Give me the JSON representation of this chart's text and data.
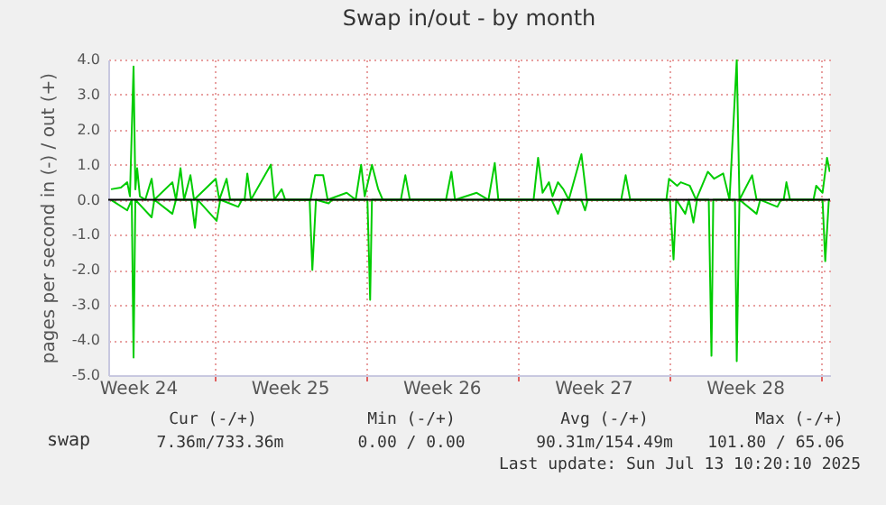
{
  "chart_data": {
    "type": "line",
    "title": "Swap in/out - by month",
    "ylabel": "pages per second in (-) / out (+)",
    "xlim": [
      "2025-06-10T03:00",
      "2025-07-13T10:20"
    ],
    "xticks": [
      {
        "value": "2025-06-11T12:00",
        "label": "Week 24"
      },
      {
        "value": "2025-06-15T00:00",
        "label": null
      },
      {
        "value": "2025-06-18T12:00",
        "label": "Week 25"
      },
      {
        "value": "2025-06-22T00:00",
        "label": null
      },
      {
        "value": "2025-06-25T12:00",
        "label": "Week 26"
      },
      {
        "value": "2025-06-29T00:00",
        "label": null
      },
      {
        "value": "2025-07-02T12:00",
        "label": "Week 27"
      },
      {
        "value": "2025-07-06T00:00",
        "label": null
      },
      {
        "value": "2025-07-09T12:00",
        "label": "Week 28"
      },
      {
        "value": "2025-07-13T00:00",
        "label": null
      }
    ],
    "ylim": [
      -5,
      4
    ],
    "yticks": [
      {
        "value": -5,
        "label": "-5.0"
      },
      {
        "value": -4,
        "label": "-4.0"
      },
      {
        "value": -3,
        "label": "-3.0"
      },
      {
        "value": -2,
        "label": "-2.0"
      },
      {
        "value": -1,
        "label": "-1.0"
      },
      {
        "value": 0,
        "label": "0.0"
      },
      {
        "value": 1,
        "label": "1.0"
      },
      {
        "value": 2,
        "label": "2.0"
      },
      {
        "value": 3,
        "label": "3.0"
      },
      {
        "value": 4,
        "label": "4.0"
      }
    ],
    "grid": true,
    "legend": "bottom left",
    "ref_lines": [
      {
        "axis": "y",
        "value": 0,
        "color": "#000000"
      }
    ],
    "series": [
      {
        "name": "swap",
        "color": "#00cc00",
        "x": [
          "2025-06-10T06:00",
          "2025-06-10T17:00",
          "2025-06-11T00:00",
          "2025-06-11T03:00",
          "2025-06-11T07:00",
          "2025-06-11T09:00",
          "2025-06-11T11:00",
          "2025-06-11T14:00",
          "2025-06-11T20:00",
          "2025-06-12T03:00",
          "2025-06-12T06:00",
          "2025-06-13T02:00",
          "2025-06-13T06:00",
          "2025-06-13T11:00",
          "2025-06-13T15:00",
          "2025-06-13T22:00",
          "2025-06-14T02:00",
          "2025-06-15T02:00",
          "2025-06-15T06:00",
          "2025-06-15T14:00",
          "2025-06-15T18:00",
          "2025-06-16T10:00",
          "2025-06-16T13:00",
          "2025-06-16T17:00",
          "2025-06-17T15:00",
          "2025-06-17T19:00",
          "2025-06-18T03:00",
          "2025-06-18T07:00",
          "2025-06-19T11:00",
          "2025-06-19T16:00",
          "2025-06-20T01:00",
          "2025-06-20T06:00",
          "2025-06-21T03:00",
          "2025-06-21T13:00",
          "2025-06-21T19:00",
          "2025-06-21T23:00",
          "2025-06-22T07:00",
          "2025-06-22T14:00",
          "2025-06-22T19:00",
          "2025-06-23T15:00",
          "2025-06-23T20:00",
          "2025-06-24T01:00",
          "2025-06-25T17:00",
          "2025-06-25T23:00",
          "2025-06-26T03:00",
          "2025-06-27T03:00",
          "2025-06-27T16:00",
          "2025-06-27T23:00",
          "2025-06-28T03:00",
          "2025-06-29T18:00",
          "2025-06-29T23:00",
          "2025-06-30T04:00",
          "2025-06-30T11:00",
          "2025-06-30T15:00",
          "2025-06-30T21:00",
          "2025-07-01T03:00",
          "2025-07-01T09:00",
          "2025-07-01T23:00",
          "2025-07-02T05:00",
          "2025-07-03T19:00",
          "2025-07-04T00:00",
          "2025-07-04T05:00",
          "2025-07-05T21:00",
          "2025-07-06T00:00",
          "2025-07-06T09:00",
          "2025-07-06T13:00",
          "2025-07-06T23:00",
          "2025-07-07T06:00",
          "2025-07-07T19:00",
          "2025-07-08T02:00",
          "2025-07-08T12:00",
          "2025-07-08T19:00",
          "2025-07-09T03:00",
          "2025-07-09T06:00",
          "2025-07-09T20:00",
          "2025-07-10T01:00",
          "2025-07-11T07:00",
          "2025-07-11T10:00",
          "2025-07-11T14:00",
          "2025-07-12T16:00",
          "2025-07-12T19:00",
          "2025-07-13T02:00",
          "2025-07-13T07:00",
          "2025-07-13T10:00"
        ],
        "values": [
          0.3,
          0.35,
          0.5,
          0.1,
          3.8,
          0.3,
          0.9,
          0.1,
          0,
          0.6,
          0,
          0.5,
          0,
          0.9,
          0,
          0.7,
          0,
          0.6,
          0,
          0.6,
          0,
          0,
          0.75,
          0,
          1.0,
          0,
          0.3,
          0,
          0,
          0.7,
          0.7,
          0,
          0.2,
          0,
          1.0,
          0.1,
          1.0,
          0.3,
          0,
          0,
          0.7,
          0,
          0,
          0.8,
          0,
          0.2,
          0,
          1.05,
          0,
          0,
          1.2,
          0.2,
          0.5,
          0.1,
          0.5,
          0.3,
          0,
          1.3,
          0,
          0,
          0.7,
          0,
          0,
          0.6,
          0.4,
          0.5,
          0.4,
          0,
          0.8,
          0.6,
          0.75,
          0,
          4.0,
          0,
          0.7,
          0,
          0,
          0.5,
          0,
          0,
          0.4,
          0.2,
          1.2,
          0.8
        ]
      },
      {
        "color": "#00cc00",
        "x": [
          "2025-06-10T06:00",
          "2025-06-11T00:00",
          "2025-06-11T05:00",
          "2025-06-11T07:00",
          "2025-06-11T09:00",
          "2025-06-12T03:00",
          "2025-06-12T06:00",
          "2025-06-13T02:00",
          "2025-06-13T06:00",
          "2025-06-13T23:00",
          "2025-06-14T03:00",
          "2025-06-14T06:00",
          "2025-06-15T03:00",
          "2025-06-15T07:00",
          "2025-06-16T03:00",
          "2025-06-16T07:00",
          "2025-06-19T10:00",
          "2025-06-19T13:00",
          "2025-06-19T17:00",
          "2025-06-20T07:00",
          "2025-06-20T11:00",
          "2025-06-22T02:00",
          "2025-06-22T05:00",
          "2025-06-22T07:00",
          "2025-06-30T14:00",
          "2025-06-30T21:00",
          "2025-07-01T02:00",
          "2025-07-01T23:00",
          "2025-07-02T03:00",
          "2025-07-02T06:00",
          "2025-07-06T01:00",
          "2025-07-06T05:00",
          "2025-07-06T08:00",
          "2025-07-06T18:00",
          "2025-07-06T22:00",
          "2025-07-07T03:00",
          "2025-07-07T07:00",
          "2025-07-07T20:00",
          "2025-07-07T23:00",
          "2025-07-08T01:00",
          "2025-07-09T01:00",
          "2025-07-09T03:00",
          "2025-07-09T06:00",
          "2025-07-10T01:00",
          "2025-07-10T05:00",
          "2025-07-11T00:00",
          "2025-07-11T04:00",
          "2025-07-13T02:00",
          "2025-07-13T05:00",
          "2025-07-13T09:00",
          "2025-07-13T10:00"
        ],
        "values": [
          0,
          -0.3,
          0,
          -4.5,
          0,
          -0.5,
          0,
          -0.4,
          0,
          0,
          -0.8,
          0,
          -0.6,
          0,
          -0.2,
          0,
          0,
          -2.0,
          0,
          -0.1,
          0,
          0,
          -2.85,
          0,
          0,
          -0.4,
          0,
          0,
          -0.3,
          0,
          0,
          -1.7,
          0,
          -0.4,
          0,
          -0.65,
          0,
          0,
          -4.45,
          0,
          0,
          -4.6,
          0,
          -0.4,
          0,
          -0.2,
          0,
          0,
          -1.75,
          0,
          0
        ]
      }
    ],
    "annotations": [
      "Cur (-/+)",
      "Min (-/+)",
      "Avg (-/+)",
      "Max (-/+)",
      "7.36m/733.36m",
      "0.00 /  0.00",
      "90.31m/154.49m",
      "101.80 / 65.06",
      "Last update: Sun Jul 13 10:20:10 2025"
    ]
  }
}
